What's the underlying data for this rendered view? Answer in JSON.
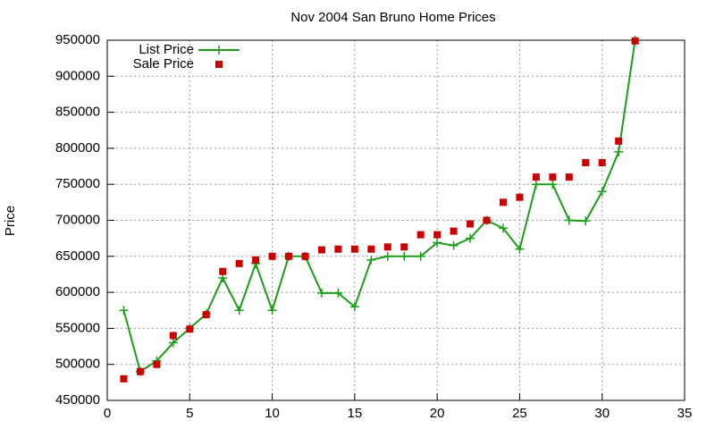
{
  "chart_data": {
    "type": "line",
    "title": "Nov 2004 San Bruno Home Prices",
    "y_label": "Price",
    "x": [
      1,
      2,
      3,
      4,
      5,
      6,
      7,
      8,
      9,
      10,
      11,
      12,
      13,
      14,
      15,
      16,
      17,
      18,
      19,
      20,
      21,
      22,
      23,
      24,
      25,
      26,
      27,
      28,
      29,
      30,
      31,
      32
    ],
    "series": [
      {
        "name": "List Price",
        "color": "#1a9e1a",
        "style": "linespoints",
        "values": [
          575000,
          490000,
          505000,
          530000,
          550000,
          570000,
          620000,
          575000,
          640000,
          575000,
          650000,
          650000,
          599000,
          599000,
          580000,
          645000,
          650000,
          650000,
          650000,
          669000,
          665000,
          675000,
          700000,
          689000,
          660000,
          750000,
          750000,
          700000,
          699000,
          740000,
          795000,
          950000
        ]
      },
      {
        "name": "Sale Price",
        "color": "#cc0000",
        "style": "points",
        "values": [
          480000,
          490000,
          500000,
          540000,
          549000,
          569000,
          629000,
          640000,
          645000,
          650000,
          650000,
          650000,
          659000,
          660000,
          660000,
          660000,
          663000,
          663000,
          680000,
          680000,
          685000,
          695000,
          700000,
          725000,
          732000,
          760000,
          760000,
          760000,
          780000,
          780000,
          810000,
          949000
        ]
      }
    ],
    "xlim": [
      0,
      35
    ],
    "xticks": [
      0,
      5,
      10,
      15,
      20,
      25,
      30,
      35
    ],
    "ylim": [
      450000,
      950000
    ],
    "yticks": [
      450000,
      500000,
      550000,
      600000,
      650000,
      700000,
      750000,
      800000,
      850000,
      900000,
      950000
    ],
    "grid": true,
    "legend": "top-left"
  }
}
